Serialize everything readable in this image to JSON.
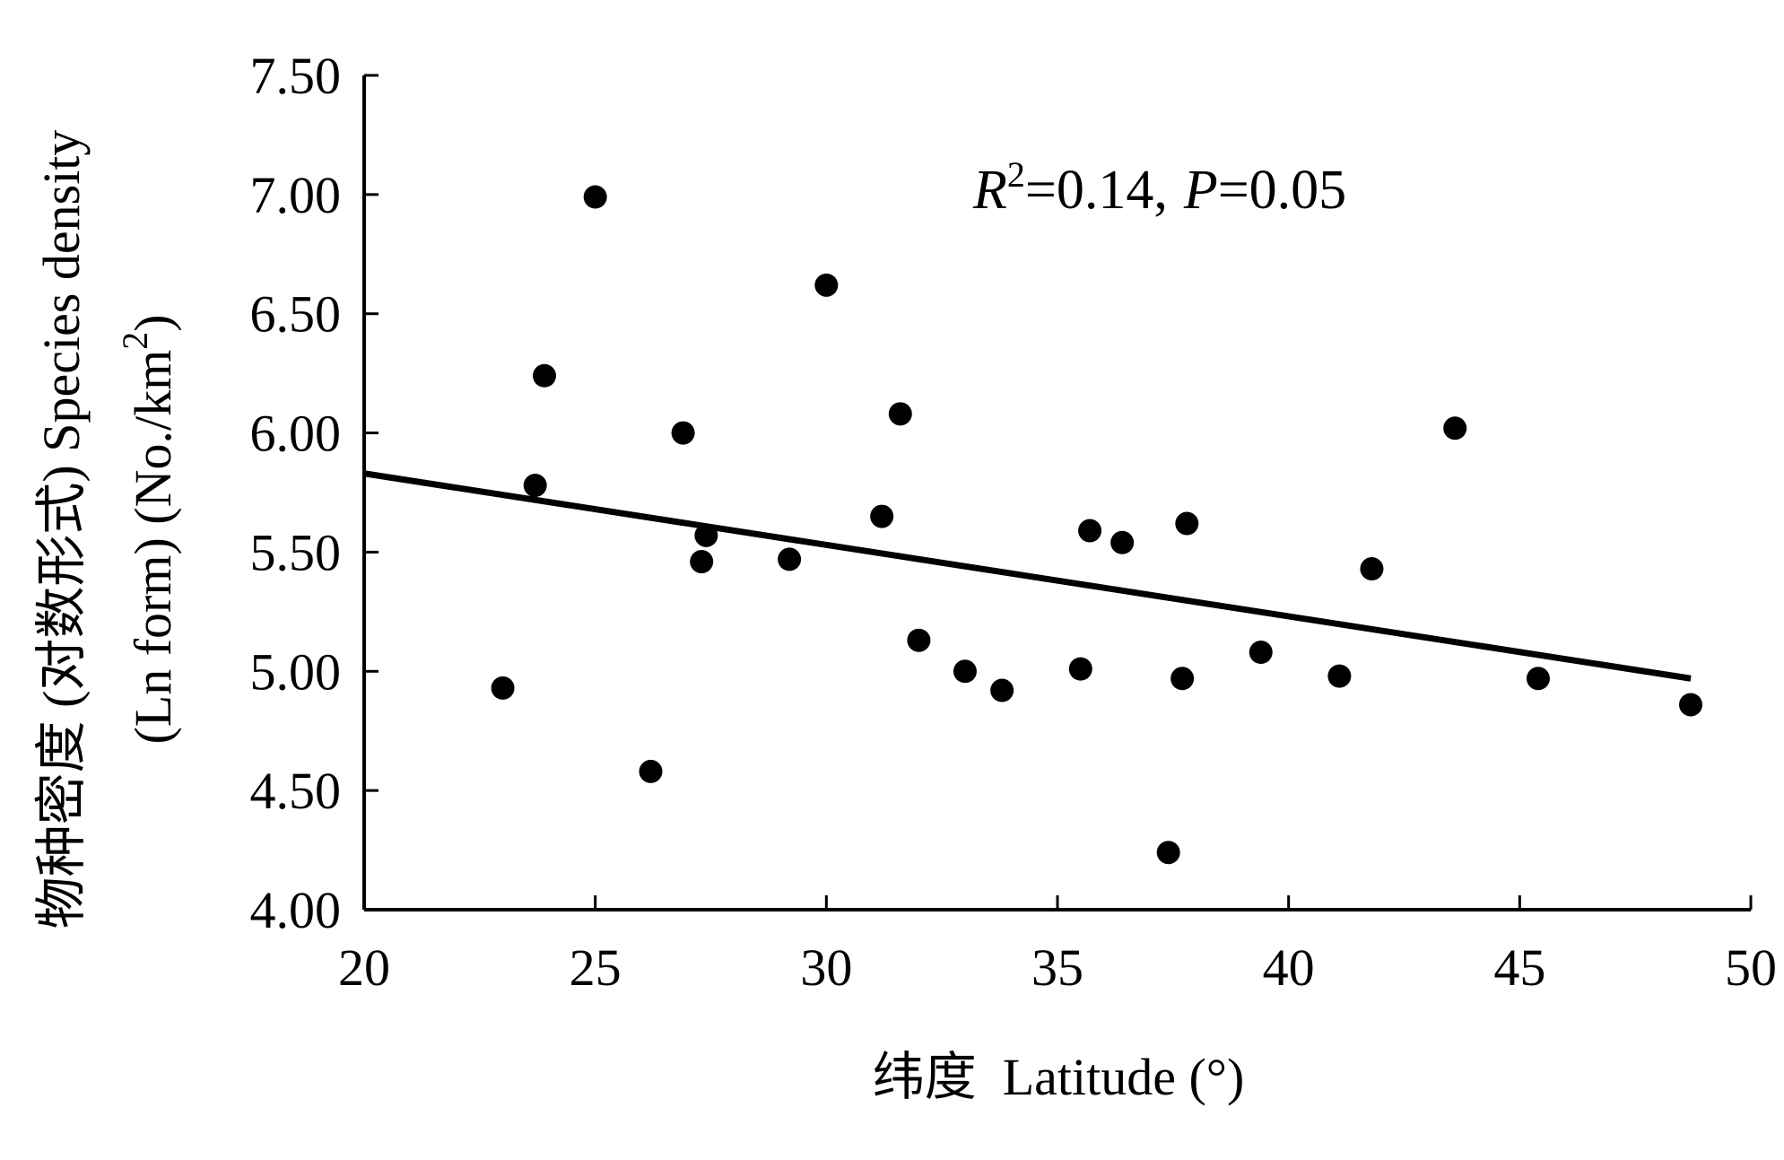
{
  "chart_data": {
    "type": "scatter",
    "xlabel": "纬度  Latitude (°)",
    "ylabel_line1": "物种密度 (对数形式) Species density",
    "ylabel_line2": "(Ln form) (No./km",
    "ylabel_sup": "2",
    "ylabel_end": ")",
    "xlim": [
      20,
      50
    ],
    "ylim": [
      4.0,
      7.5
    ],
    "x_ticks": [
      "20",
      "25",
      "30",
      "35",
      "40",
      "45",
      "50"
    ],
    "y_ticks": [
      "4.00",
      "4.50",
      "5.00",
      "5.50",
      "6.00",
      "6.50",
      "7.00",
      "7.50"
    ],
    "annotation": {
      "r_label": "R",
      "r_sup": "2",
      "r_value": "=0.14,",
      "p_label": "P",
      "p_value": "=0.05"
    },
    "series": [
      {
        "points": [
          {
            "x": 23.0,
            "y": 4.93
          },
          {
            "x": 23.7,
            "y": 5.78
          },
          {
            "x": 23.9,
            "y": 6.24
          },
          {
            "x": 25.0,
            "y": 6.99
          },
          {
            "x": 26.2,
            "y": 4.58
          },
          {
            "x": 26.9,
            "y": 6.0
          },
          {
            "x": 27.3,
            "y": 5.46
          },
          {
            "x": 27.4,
            "y": 5.57
          },
          {
            "x": 29.2,
            "y": 5.47
          },
          {
            "x": 30.0,
            "y": 6.62
          },
          {
            "x": 31.2,
            "y": 5.65
          },
          {
            "x": 31.6,
            "y": 6.08
          },
          {
            "x": 32.0,
            "y": 5.13
          },
          {
            "x": 33.0,
            "y": 5.0
          },
          {
            "x": 33.8,
            "y": 4.92
          },
          {
            "x": 35.5,
            "y": 5.01
          },
          {
            "x": 35.7,
            "y": 5.59
          },
          {
            "x": 36.4,
            "y": 5.54
          },
          {
            "x": 37.4,
            "y": 4.24
          },
          {
            "x": 37.7,
            "y": 4.97
          },
          {
            "x": 37.8,
            "y": 5.62
          },
          {
            "x": 39.4,
            "y": 5.08
          },
          {
            "x": 41.1,
            "y": 4.98
          },
          {
            "x": 41.8,
            "y": 5.43
          },
          {
            "x": 43.6,
            "y": 6.02
          },
          {
            "x": 45.4,
            "y": 4.97
          },
          {
            "x": 48.7,
            "y": 4.86
          }
        ]
      }
    ],
    "trendline": {
      "x": [
        20,
        48.7
      ],
      "y": [
        5.83,
        4.97
      ]
    }
  }
}
